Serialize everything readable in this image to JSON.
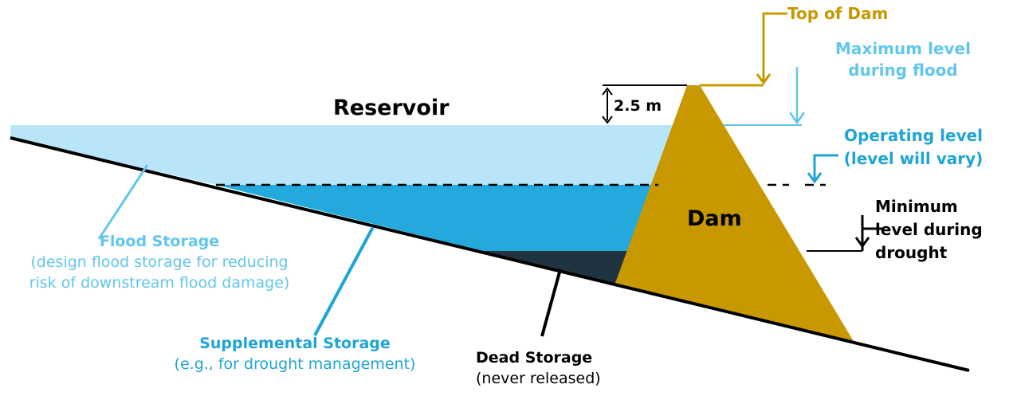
{
  "reservoir": {
    "title": "Reservoir"
  },
  "dam": {
    "label": "Dam"
  },
  "dimension": {
    "label": "2.5 m"
  },
  "levels": {
    "top_of_dam": "Top of Dam",
    "max_flood": [
      "Maximum level",
      "during flood"
    ],
    "operating": [
      "Operating level",
      "(level will vary)"
    ],
    "min_drought": [
      "Minimum",
      "level during",
      "drought"
    ]
  },
  "storages": {
    "flood": {
      "title": "Flood Storage",
      "desc": [
        "(design flood storage for reducing",
        "risk of downstream flood damage)"
      ]
    },
    "supplemental": {
      "title": "Supplemental Storage",
      "desc": "(e.g., for drought management)"
    },
    "dead": {
      "title": "Dead Storage",
      "desc": "(never released)"
    }
  },
  "colors": {
    "flood_water": "#b8e6f8",
    "supplemental_water": "#24a9dc",
    "dead_water": "#1f3340",
    "dam": "#c89800",
    "flood_text": "#62c6ec",
    "supplemental_text": "#1ea4d6",
    "line": "#000000"
  }
}
